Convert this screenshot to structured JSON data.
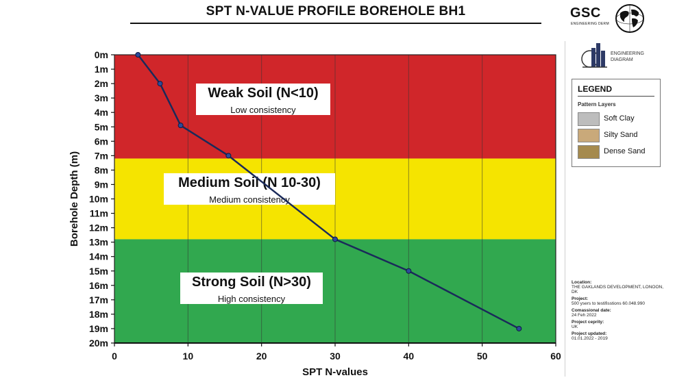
{
  "header": {
    "title": "SPT N-VALUE PROFILE BOREHOLE BH1"
  },
  "logo": {
    "name": "GSC",
    "subtitle": "ENGINEERING DERM"
  },
  "engineering_logo": {
    "line1": "ENGINEERING",
    "line2": "DIAGRAM"
  },
  "legend": {
    "title": "LEGEND",
    "subtitle": "Pattern Layers",
    "items": [
      {
        "label": "Soft Clay",
        "color": "#bdbdbd"
      },
      {
        "label": "Silty Sand",
        "color": "#c9a97a"
      },
      {
        "label": "Dense Sand",
        "color": "#a58a4e"
      }
    ]
  },
  "project_info": [
    {
      "label": "Location:",
      "value": "THE GAKLANDS DEVELOPMENT, LONOON, DK"
    },
    {
      "label": "Project:",
      "value": "500 ysers to testifisstions 60.048.990"
    },
    {
      "label": "Comassional date:",
      "value": "24 Feh 2022"
    },
    {
      "label": "Project ceprity:",
      "value": "UK"
    },
    {
      "label": "Project updated:",
      "value": "01.01.2022 - 2019"
    }
  ],
  "zones": [
    {
      "title": "Weak Soil (N<10)",
      "subtitle": "Low consistency",
      "from": 0,
      "to": 7.2,
      "color": "#d0262a"
    },
    {
      "title": "Medium Soil (N 10-30)",
      "subtitle": "Medium consistency",
      "from": 7.2,
      "to": 12.8,
      "color": "#f5e400"
    },
    {
      "title": "Strong Soil (N>30)",
      "subtitle": "High consistency",
      "from": 12.8,
      "to": 20,
      "color": "#31a84f"
    }
  ],
  "chart_data": {
    "type": "line",
    "title": "SPT N-VALUE PROFILE BOREHOLE BH1",
    "xlabel": "SPT N-values",
    "ylabel": "Borehole Depth (m)",
    "xlim": [
      0,
      60
    ],
    "ylim": [
      20,
      0
    ],
    "x_ticks": [
      "0",
      "10",
      "20",
      "30",
      "40",
      "50",
      "60"
    ],
    "y_ticks": [
      "0m",
      "1m",
      "2m",
      "3m",
      "4m",
      "5m",
      "6m",
      "7m",
      "8m",
      "9m",
      "10m",
      "11m",
      "12m",
      "13m",
      "14m",
      "15m",
      "16m",
      "17m",
      "18m",
      "19m",
      "20m"
    ],
    "grid": true,
    "series": [
      {
        "color": "#1a2a5a",
        "points": [
          {
            "x": 3.2,
            "y": 0
          },
          {
            "x": 6.2,
            "y": 2
          },
          {
            "x": 9,
            "y": 4.9
          },
          {
            "x": 15.5,
            "y": 7
          },
          {
            "x": 30,
            "y": 12.8
          },
          {
            "x": 40,
            "y": 15
          },
          {
            "x": 55,
            "y": 19
          }
        ]
      }
    ]
  }
}
